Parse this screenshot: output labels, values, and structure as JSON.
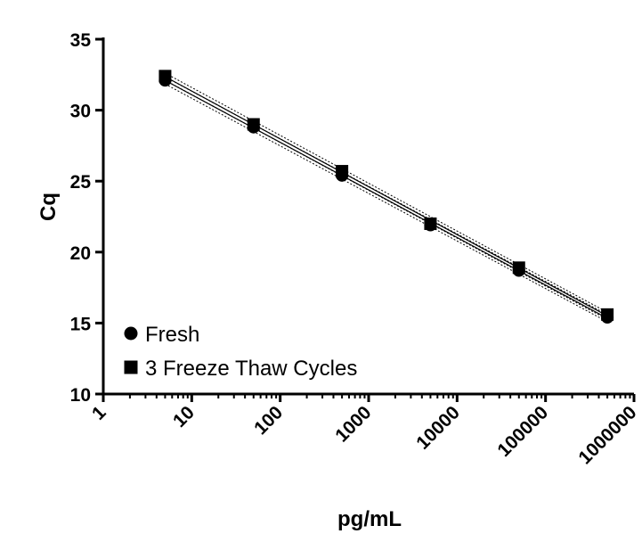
{
  "chart_data": {
    "type": "scatter",
    "xlabel": "pg/mL",
    "ylabel": "Cq",
    "xscale": "log",
    "xlim": [
      1,
      1000000
    ],
    "ylim": [
      10,
      35
    ],
    "x_ticks": [
      1,
      10,
      100,
      1000,
      10000,
      100000,
      1000000
    ],
    "x_tick_labels": [
      "1",
      "10",
      "100",
      "1000",
      "10000",
      "100000",
      "1000000"
    ],
    "y_ticks": [
      10,
      15,
      20,
      25,
      30,
      35
    ],
    "y_tick_labels": [
      "10",
      "15",
      "20",
      "25",
      "30",
      "35"
    ],
    "grid": false,
    "legend_position": "bottom-left",
    "series": [
      {
        "name": "Fresh",
        "marker": "circle",
        "color": "#000000",
        "x": [
          5,
          50,
          500,
          5000,
          50000,
          500000
        ],
        "y": [
          32.1,
          28.8,
          25.4,
          21.9,
          18.7,
          15.4
        ],
        "fit_line": true,
        "confidence_band": true
      },
      {
        "name": "3 Freeze Thaw Cycles",
        "marker": "square",
        "color": "#000000",
        "x": [
          5,
          50,
          500,
          5000,
          50000,
          500000
        ],
        "y": [
          32.4,
          29.0,
          25.7,
          22.0,
          18.9,
          15.6
        ],
        "fit_line": true,
        "confidence_band": true
      }
    ]
  }
}
